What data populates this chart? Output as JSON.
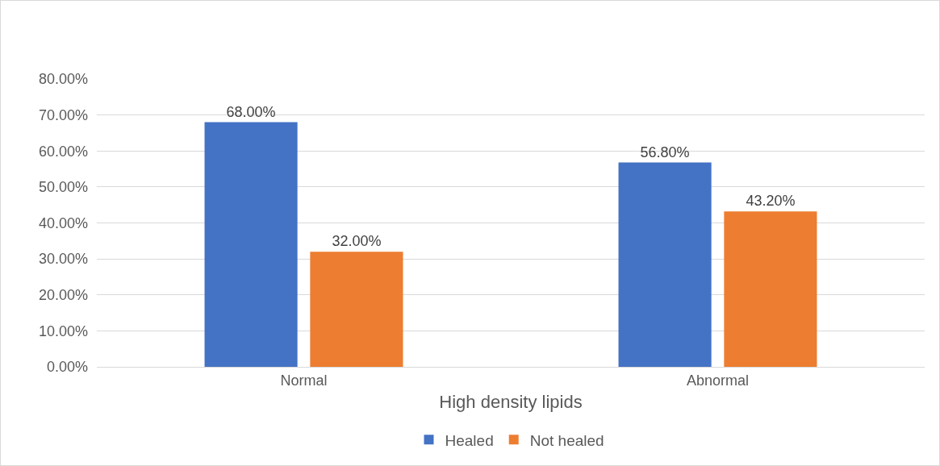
{
  "chart_data": {
    "type": "bar",
    "xlabel": "High density lipids",
    "categories": [
      "Normal",
      "Abnormal"
    ],
    "series": [
      {
        "name": "Healed",
        "color": "#4472c4",
        "values": [
          68,
          56.8
        ],
        "value_labels": [
          "68.00%",
          "56.80%"
        ]
      },
      {
        "name": "Not healed",
        "color": "#ed7d31",
        "values": [
          32,
          43.2
        ],
        "value_labels": [
          "32.00%",
          "43.20%"
        ]
      }
    ],
    "ylim": [
      0,
      80
    ],
    "yticks": [
      {
        "value": 0,
        "label": "0.00%"
      },
      {
        "value": 10,
        "label": "10.00%"
      },
      {
        "value": 20,
        "label": "20.00%"
      },
      {
        "value": 30,
        "label": "30.00%"
      },
      {
        "value": 40,
        "label": "40.00%"
      },
      {
        "value": 50,
        "label": "50.00%"
      },
      {
        "value": 60,
        "label": "60.00%"
      },
      {
        "value": 70,
        "label": "70.00%"
      },
      {
        "value": 80,
        "label": "80.00%"
      }
    ],
    "grid": "y",
    "legend": "bottom"
  }
}
